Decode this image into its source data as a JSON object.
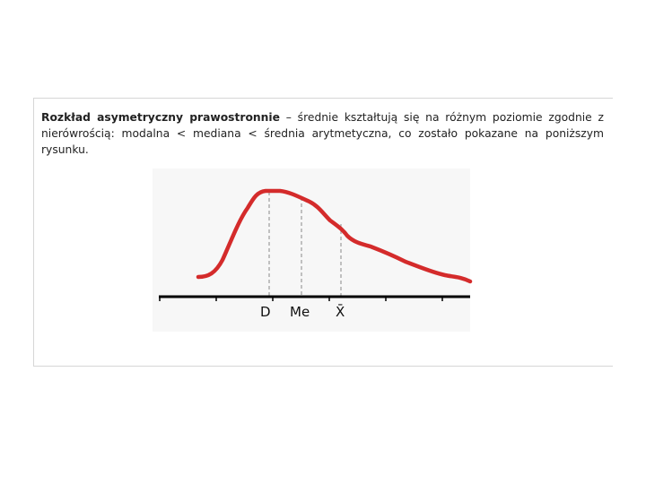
{
  "text": {
    "bold": "Rozkład asymetryczny prawostronnie",
    "rest": " – średnie kształtują się na różnym poziomie zgodnie z nierówrością: modalna < mediana < średnia arytmetyczna, co zostało pokazane na poniższym rysunku."
  },
  "figure": {
    "labels": {
      "mode": "D",
      "median": "Me",
      "mean": "X̄"
    },
    "colors": {
      "curve": "#d42b2b",
      "axis": "#000000",
      "guides": "#8a8a8a",
      "background": "#f7f7f7"
    }
  }
}
